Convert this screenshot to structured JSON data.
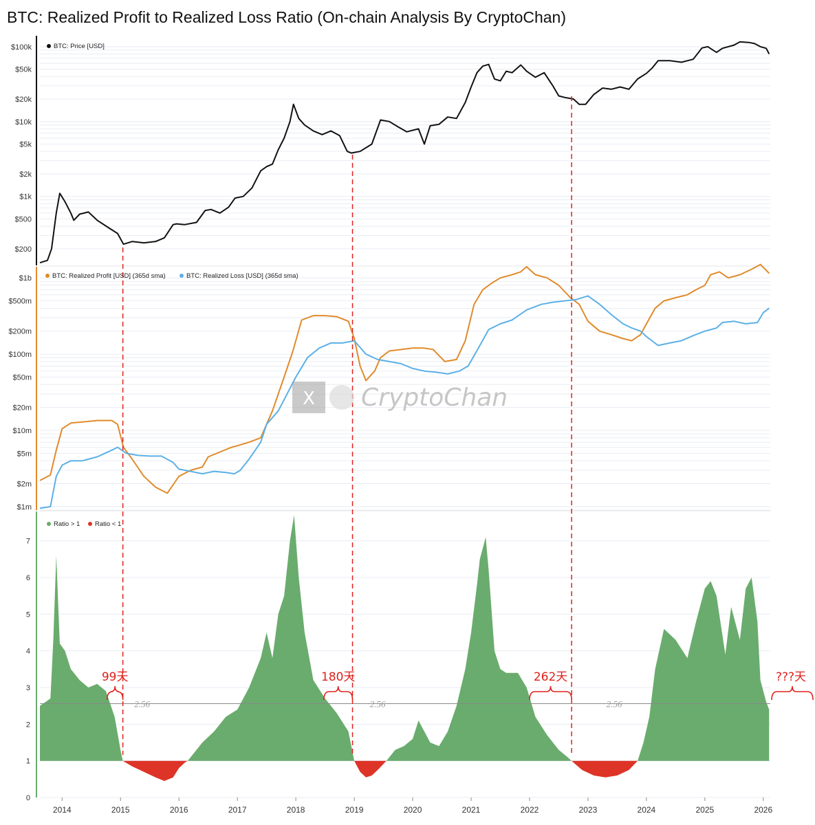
{
  "title": "BTC: Realized Profit to Realized Loss Ratio (On-chain Analysis By CryptoChan)",
  "watermark": {
    "logo_letter": "X",
    "text": "CryptoChan"
  },
  "colors": {
    "price": "#111111",
    "profit": "#e08a2a",
    "loss": "#5bb0e6",
    "ratio_up": "#6aac6e",
    "ratio_down": "#dd3427",
    "annotation": "#e0201a",
    "grid": "#e3e7f0",
    "ref_line": "#888888"
  },
  "chart_data": [
    {
      "type": "line",
      "panel": "price",
      "scale": "log",
      "ylim": [
        120,
        140000
      ],
      "yticks": [
        {
          "value": 100000,
          "label": "$100k"
        },
        {
          "value": 50000,
          "label": "$50k"
        },
        {
          "value": 20000,
          "label": "$20k"
        },
        {
          "value": 10000,
          "label": "$10k"
        },
        {
          "value": 5000,
          "label": "$5k"
        },
        {
          "value": 2000,
          "label": "$2k"
        },
        {
          "value": 1000,
          "label": "$1k"
        },
        {
          "value": 500,
          "label": "$500"
        },
        {
          "value": 200,
          "label": "$200"
        }
      ],
      "series": [
        {
          "name": "BTC: Price [USD]",
          "x": [
            2013.62,
            2013.75,
            2013.82,
            2013.9,
            2013.96,
            2014.05,
            2014.15,
            2014.2,
            2014.3,
            2014.45,
            2014.6,
            2014.8,
            2014.95,
            2015.05,
            2015.2,
            2015.4,
            2015.6,
            2015.75,
            2015.9,
            2015.96,
            2016.1,
            2016.3,
            2016.45,
            2016.55,
            2016.7,
            2016.85,
            2016.96,
            2017.1,
            2017.25,
            2017.4,
            2017.5,
            2017.6,
            2017.7,
            2017.8,
            2017.9,
            2017.96,
            2018.05,
            2018.15,
            2018.3,
            2018.45,
            2018.6,
            2018.75,
            2018.88,
            2018.95,
            2019.1,
            2019.3,
            2019.45,
            2019.6,
            2019.75,
            2019.9,
            2020.1,
            2020.2,
            2020.3,
            2020.45,
            2020.6,
            2020.75,
            2020.9,
            2021.0,
            2021.1,
            2021.2,
            2021.3,
            2021.4,
            2021.5,
            2021.6,
            2021.7,
            2021.85,
            2021.95,
            2022.1,
            2022.25,
            2022.4,
            2022.5,
            2022.6,
            2022.75,
            2022.85,
            2022.96,
            2023.1,
            2023.25,
            2023.4,
            2023.55,
            2023.7,
            2023.85,
            2024.0,
            2024.1,
            2024.2,
            2024.4,
            2024.6,
            2024.8,
            2024.95,
            2025.05,
            2025.2,
            2025.3,
            2025.5,
            2025.6,
            2025.75,
            2025.85,
            2025.95,
            2026.05,
            2026.1
          ],
          "y": [
            130,
            140,
            200,
            600,
            1100,
            850,
            600,
            480,
            580,
            620,
            480,
            380,
            320,
            230,
            250,
            240,
            250,
            280,
            420,
            430,
            420,
            450,
            650,
            670,
            600,
            720,
            950,
            1000,
            1300,
            2200,
            2500,
            2700,
            4200,
            6000,
            10000,
            17000,
            11000,
            9000,
            7500,
            6700,
            7500,
            6500,
            4000,
            3800,
            4000,
            5000,
            10500,
            10000,
            8500,
            7300,
            8000,
            5000,
            8800,
            9200,
            11500,
            11000,
            18000,
            29000,
            45000,
            55000,
            58000,
            37000,
            35000,
            47000,
            45000,
            57000,
            47000,
            39000,
            45000,
            30000,
            22000,
            21000,
            20000,
            17000,
            17000,
            23000,
            28000,
            27000,
            29000,
            27000,
            37000,
            44000,
            52000,
            65000,
            65000,
            62000,
            68000,
            96000,
            100000,
            84000,
            95000,
            105000,
            116000,
            114000,
            110000,
            100000,
            95000,
            80000
          ]
        }
      ]
    },
    {
      "type": "line",
      "panel": "realized",
      "scale": "log",
      "ylim": [
        900000,
        1400000000
      ],
      "yticks": [
        {
          "value": 1000000000,
          "label": "$1b"
        },
        {
          "value": 500000000,
          "label": "$500m"
        },
        {
          "value": 200000000,
          "label": "$200m"
        },
        {
          "value": 100000000,
          "label": "$100m"
        },
        {
          "value": 50000000,
          "label": "$50m"
        },
        {
          "value": 20000000,
          "label": "$20m"
        },
        {
          "value": 10000000,
          "label": "$10m"
        },
        {
          "value": 5000000,
          "label": "$5m"
        },
        {
          "value": 2000000,
          "label": "$2m"
        },
        {
          "value": 1000000,
          "label": "$1m"
        }
      ],
      "series": [
        {
          "name": "BTC: Realized Profit [USD] (365d sma)",
          "x": [
            2013.62,
            2013.8,
            2013.9,
            2014.0,
            2014.15,
            2014.4,
            2014.6,
            2014.85,
            2014.95,
            2015.05,
            2015.2,
            2015.4,
            2015.6,
            2015.8,
            2016.0,
            2016.2,
            2016.4,
            2016.5,
            2016.7,
            2016.9,
            2017.0,
            2017.2,
            2017.4,
            2017.6,
            2017.8,
            2017.95,
            2018.1,
            2018.3,
            2018.5,
            2018.7,
            2018.9,
            2019.0,
            2019.1,
            2019.2,
            2019.35,
            2019.45,
            2019.6,
            2019.8,
            2020.0,
            2020.2,
            2020.35,
            2020.55,
            2020.75,
            2020.9,
            2021.05,
            2021.2,
            2021.35,
            2021.5,
            2021.7,
            2021.85,
            2021.95,
            2022.1,
            2022.3,
            2022.5,
            2022.7,
            2022.85,
            2023.0,
            2023.2,
            2023.4,
            2023.6,
            2023.75,
            2023.9,
            2024.0,
            2024.15,
            2024.3,
            2024.5,
            2024.7,
            2024.85,
            2025.0,
            2025.1,
            2025.25,
            2025.4,
            2025.6,
            2025.8,
            2025.95,
            2026.1
          ],
          "y": [
            2200000,
            2600000,
            5500000,
            10500000,
            12500000,
            13000000,
            13500000,
            13500000,
            12000000,
            6000000,
            4200000,
            2500000,
            1800000,
            1500000,
            2500000,
            3000000,
            3300000,
            4500000,
            5200000,
            6000000,
            6300000,
            7000000,
            8000000,
            18000000,
            50000000,
            110000000,
            280000000,
            320000000,
            320000000,
            310000000,
            270000000,
            160000000,
            70000000,
            45000000,
            60000000,
            90000000,
            110000000,
            115000000,
            120000000,
            120000000,
            115000000,
            80000000,
            85000000,
            150000000,
            450000000,
            700000000,
            850000000,
            1000000000,
            1100000000,
            1200000000,
            1400000000,
            1100000000,
            1000000000,
            800000000,
            550000000,
            450000000,
            270000000,
            200000000,
            180000000,
            160000000,
            150000000,
            180000000,
            250000000,
            400000000,
            500000000,
            550000000,
            600000000,
            700000000,
            800000000,
            1100000000,
            1200000000,
            1000000000,
            1100000000,
            1300000000,
            1500000000,
            1150000000
          ]
        },
        {
          "name": "BTC: Realized Loss [USD] (365d sma)",
          "x": [
            2013.62,
            2013.8,
            2013.9,
            2014.0,
            2014.15,
            2014.35,
            2014.6,
            2014.85,
            2014.95,
            2015.1,
            2015.3,
            2015.5,
            2015.7,
            2015.9,
            2016.0,
            2016.2,
            2016.4,
            2016.6,
            2016.8,
            2016.95,
            2017.05,
            2017.2,
            2017.4,
            2017.5,
            2017.7,
            2017.85,
            2018.0,
            2018.2,
            2018.4,
            2018.6,
            2018.8,
            2019.0,
            2019.2,
            2019.4,
            2019.6,
            2019.8,
            2020.0,
            2020.2,
            2020.4,
            2020.6,
            2020.8,
            2020.95,
            2021.15,
            2021.3,
            2021.5,
            2021.7,
            2021.95,
            2022.2,
            2022.4,
            2022.6,
            2022.8,
            2023.0,
            2023.2,
            2023.4,
            2023.6,
            2023.75,
            2023.9,
            2024.0,
            2024.2,
            2024.4,
            2024.6,
            2024.8,
            2025.0,
            2025.2,
            2025.3,
            2025.5,
            2025.7,
            2025.9,
            2026.0,
            2026.1
          ],
          "y": [
            950000,
            1000000,
            2500000,
            3500000,
            4000000,
            4000000,
            4500000,
            5500000,
            6000000,
            5000000,
            4700000,
            4600000,
            4600000,
            3800000,
            3100000,
            2900000,
            2700000,
            2900000,
            2800000,
            2700000,
            3000000,
            4200000,
            7000000,
            12000000,
            18000000,
            30000000,
            50000000,
            90000000,
            120000000,
            140000000,
            140000000,
            150000000,
            100000000,
            85000000,
            80000000,
            75000000,
            65000000,
            60000000,
            58000000,
            55000000,
            60000000,
            70000000,
            130000000,
            210000000,
            250000000,
            280000000,
            380000000,
            450000000,
            480000000,
            500000000,
            520000000,
            580000000,
            450000000,
            330000000,
            250000000,
            220000000,
            200000000,
            170000000,
            130000000,
            140000000,
            150000000,
            175000000,
            200000000,
            220000000,
            260000000,
            270000000,
            250000000,
            260000000,
            350000000,
            400000000
          ]
        }
      ]
    },
    {
      "type": "area",
      "panel": "ratio",
      "ylim": [
        0,
        7.8
      ],
      "yticks": [
        0,
        1,
        2,
        3,
        4,
        5,
        6,
        7
      ],
      "baseline": 1,
      "reference_lines": [
        {
          "value": 2.56,
          "label": "2.56"
        }
      ],
      "series": [
        {
          "name": "Ratio > 1",
          "x": [
            2013.62,
            2013.8,
            2013.85,
            2013.9,
            2013.96,
            2014.05,
            2014.15,
            2014.3,
            2014.45,
            2014.6,
            2014.75,
            2014.9,
            2015.0,
            2015.04
          ],
          "y": [
            2.5,
            2.7,
            4.3,
            6.6,
            4.2,
            4.0,
            3.5,
            3.2,
            3.0,
            3.1,
            2.9,
            2.2,
            1.3,
            1.0
          ]
        },
        {
          "name": "Ratio < 1",
          "x": [
            2015.04,
            2015.2,
            2015.4,
            2015.6,
            2015.75,
            2015.9,
            2016.0,
            2016.1,
            2016.15
          ],
          "y": [
            1.0,
            0.85,
            0.7,
            0.55,
            0.45,
            0.55,
            0.8,
            0.95,
            1.0
          ]
        },
        {
          "name": "Ratio > 1",
          "x": [
            2016.15,
            2016.4,
            2016.6,
            2016.8,
            2017.0,
            2017.2,
            2017.4,
            2017.5,
            2017.6,
            2017.7,
            2017.8,
            2017.9,
            2017.97,
            2018.05,
            2018.15,
            2018.3,
            2018.5,
            2018.7,
            2018.9,
            2019.0
          ],
          "y": [
            1.0,
            1.5,
            1.8,
            2.2,
            2.4,
            3.0,
            3.8,
            4.5,
            3.8,
            5.0,
            5.5,
            7.0,
            7.7,
            6.0,
            4.5,
            3.2,
            2.7,
            2.3,
            1.8,
            1.0
          ]
        },
        {
          "name": "Ratio < 1",
          "x": [
            2019.0,
            2019.1,
            2019.2,
            2019.3,
            2019.4,
            2019.55
          ],
          "y": [
            1.0,
            0.7,
            0.55,
            0.6,
            0.75,
            1.0
          ]
        },
        {
          "name": "Ratio > 1",
          "x": [
            2019.55,
            2019.7,
            2019.85,
            2020.0,
            2020.1,
            2020.2,
            2020.3,
            2020.45,
            2020.6,
            2020.75,
            2020.9,
            2021.0,
            2021.1,
            2021.15,
            2021.2,
            2021.25,
            2021.3,
            2021.4,
            2021.5,
            2021.6,
            2021.8,
            2021.95,
            2022.1,
            2022.3,
            2022.5,
            2022.65,
            2022.72
          ],
          "y": [
            1.0,
            1.3,
            1.4,
            1.6,
            2.1,
            1.8,
            1.5,
            1.4,
            1.8,
            2.5,
            3.5,
            4.5,
            5.8,
            6.5,
            6.8,
            7.1,
            6.2,
            4.0,
            3.5,
            3.4,
            3.4,
            3.0,
            2.2,
            1.7,
            1.3,
            1.1,
            1.0
          ]
        },
        {
          "name": "Ratio < 1",
          "x": [
            2022.72,
            2022.9,
            2023.1,
            2023.3,
            2023.5,
            2023.7,
            2023.85
          ],
          "y": [
            1.0,
            0.75,
            0.6,
            0.55,
            0.6,
            0.75,
            1.0
          ]
        },
        {
          "name": "Ratio > 1",
          "x": [
            2023.85,
            2023.95,
            2024.05,
            2024.15,
            2024.3,
            2024.5,
            2024.7,
            2024.85,
            2025.0,
            2025.1,
            2025.2,
            2025.35,
            2025.45,
            2025.6,
            2025.7,
            2025.8,
            2025.9,
            2025.95,
            2026.05,
            2026.1
          ],
          "y": [
            1.0,
            1.5,
            2.2,
            3.5,
            4.6,
            4.3,
            3.8,
            4.8,
            5.7,
            5.9,
            5.5,
            3.9,
            5.2,
            4.3,
            5.7,
            6.0,
            4.8,
            3.2,
            2.6,
            2.4
          ]
        }
      ]
    }
  ],
  "x_axis": {
    "range": [
      2013.62,
      2026.12
    ],
    "ticks": [
      "2014",
      "2015",
      "2016",
      "2017",
      "2018",
      "2019",
      "2020",
      "2021",
      "2022",
      "2023",
      "2024",
      "2025",
      "2026"
    ]
  },
  "legends": {
    "price": "BTC: Price [USD]",
    "profit": "BTC: Realized Profit [USD] (365d sma)",
    "loss": "BTC: Realized Loss [USD] (365d sma)",
    "ratio_up": "Ratio > 1",
    "ratio_down": "Ratio < 1"
  },
  "cycle_markers": [
    {
      "x": 2015.04,
      "label": "99天",
      "bracket_from": 2014.77
    },
    {
      "x": 2018.97,
      "label": "180天",
      "bracket_from": 2018.48
    },
    {
      "x": 2022.72,
      "label": "262天",
      "bracket_from": 2022.0
    },
    {
      "x": 2026.12,
      "label": "???天",
      "bracket_from": 2026.12
    }
  ]
}
